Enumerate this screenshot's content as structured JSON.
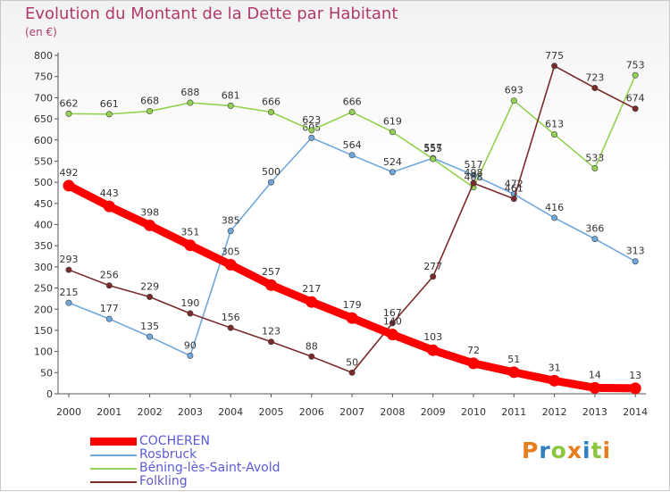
{
  "chart_data": {
    "type": "line",
    "title": "Evolution du Montant de la Dette par Habitant",
    "subtitle": "(en €)",
    "x": [
      "2000",
      "2001",
      "2002",
      "2003",
      "2004",
      "2005",
      "2006",
      "2007",
      "2008",
      "2009",
      "2010",
      "2011",
      "2012",
      "2013",
      "2014"
    ],
    "ylim": [
      0,
      800
    ],
    "yticks": [
      0,
      50,
      100,
      150,
      200,
      250,
      300,
      350,
      400,
      450,
      500,
      550,
      600,
      650,
      700,
      750,
      800
    ],
    "grid": false,
    "legend_position": "bottom-left",
    "series": [
      {
        "name": "COCHEREN",
        "color": "#ff0000",
        "emphasis": true,
        "values": [
          492,
          443,
          398,
          351,
          305,
          257,
          217,
          179,
          140,
          103,
          72,
          51,
          31,
          14,
          13
        ]
      },
      {
        "name": "Rosbruck",
        "color": "#6fa8dc",
        "values": [
          215,
          177,
          135,
          90,
          385,
          500,
          605,
          564,
          524,
          557,
          517,
          472,
          416,
          366,
          313
        ]
      },
      {
        "name": "Béning-lès-Saint-Avold",
        "color": "#93d150",
        "values": [
          662,
          661,
          668,
          688,
          681,
          666,
          623,
          666,
          619,
          555,
          488,
          693,
          613,
          533,
          753
        ]
      },
      {
        "name": "Folkling",
        "color": "#7b2a2a",
        "values": [
          293,
          256,
          229,
          190,
          156,
          123,
          88,
          50,
          167,
          277,
          498,
          461,
          775,
          723,
          674
        ]
      }
    ]
  },
  "logo": {
    "text": "Proxiti",
    "colors": [
      "#e87d1e",
      "#2f7fc1",
      "#8cc63f",
      "#e87d1e",
      "#2f7fc1",
      "#8cc63f",
      "#e87d1e"
    ]
  }
}
